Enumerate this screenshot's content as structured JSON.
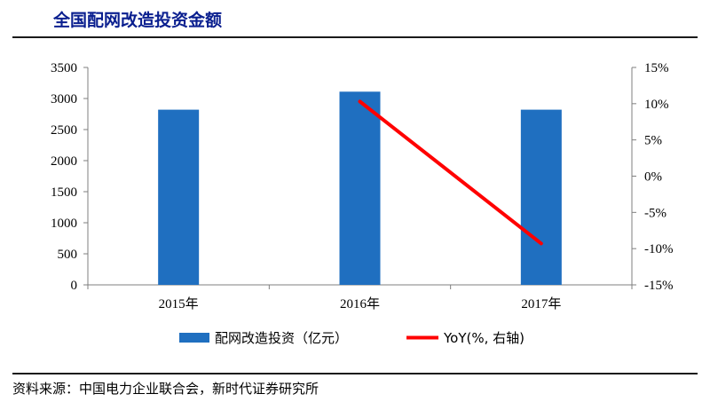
{
  "title": "全国配网改造投资金额",
  "source": "资料来源：中国电力企业联合会，新时代证券研究所",
  "colors": {
    "bar": "#1f6fc0",
    "line": "#ff0000",
    "title": "#0a1f8f"
  },
  "chart_data": {
    "type": "bar",
    "categories": [
      "2015年",
      "2016年",
      "2017年"
    ],
    "series": [
      {
        "name": "配网改造投资（亿元）",
        "type": "bar",
        "axis": "left",
        "values": [
          2820,
          3110,
          2820
        ]
      },
      {
        "name": "YoY(%, 右轴)",
        "type": "line",
        "axis": "right",
        "values": [
          null,
          10.3,
          -9.3
        ]
      }
    ],
    "left_axis": {
      "min": 0,
      "max": 3500,
      "step": 500,
      "tick_labels": [
        "0",
        "500",
        "1000",
        "1500",
        "2000",
        "2500",
        "3000",
        "3500"
      ]
    },
    "right_axis": {
      "min": -15,
      "max": 15,
      "step": 5,
      "tick_labels": [
        "-15%",
        "-10%",
        "-5%",
        "0%",
        "5%",
        "10%",
        "15%"
      ]
    },
    "grid": false,
    "legend_position": "bottom"
  }
}
